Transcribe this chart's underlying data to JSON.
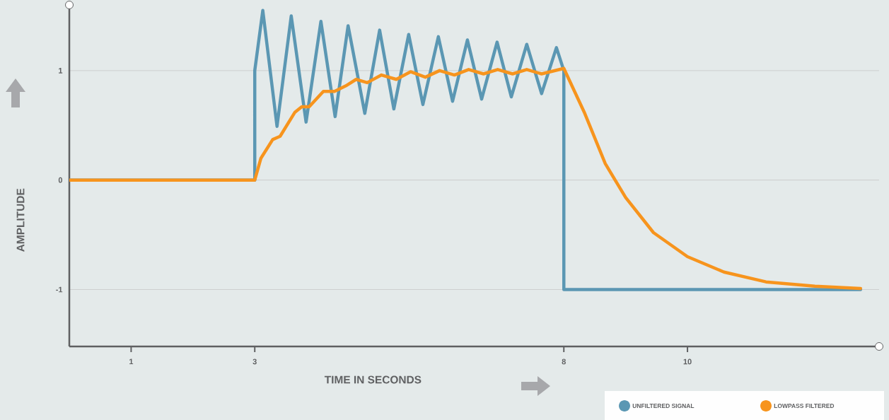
{
  "chart_data": {
    "type": "line",
    "xlabel": "TIME IN SECONDS",
    "ylabel": "AMPLITUDE",
    "xlim": [
      0,
      13.1
    ],
    "ylim": [
      -1.52,
      1.6
    ],
    "xticks": [
      1,
      3,
      8,
      10
    ],
    "yticks": [
      -1,
      0,
      1
    ],
    "grid": "y",
    "legend": "bottom right",
    "marker": "none",
    "line_style": "solid",
    "series": [
      {
        "name": "UNFILTERED SIGNAL",
        "color": "#5b97b3",
        "x": [
          0,
          3,
          3,
          3.13,
          3.36,
          3.59,
          3.83,
          4.07,
          4.3,
          4.51,
          4.78,
          5.02,
          5.25,
          5.49,
          5.72,
          5.97,
          6.2,
          6.44,
          6.67,
          6.92,
          7.15,
          7.4,
          7.64,
          7.88,
          8,
          8,
          12.8
        ],
        "values": [
          0,
          0,
          1,
          1.55,
          0.49,
          1.5,
          0.53,
          1.45,
          0.58,
          1.41,
          0.61,
          1.37,
          0.65,
          1.33,
          0.69,
          1.31,
          0.72,
          1.28,
          0.74,
          1.26,
          0.76,
          1.24,
          0.79,
          1.21,
          1,
          -1,
          -1
        ]
      },
      {
        "name": "LOWPASS FILTERED",
        "color": "#f7941d",
        "x": [
          0,
          3,
          3.1,
          3.29,
          3.41,
          3.65,
          3.76,
          3.88,
          4.11,
          4.29,
          4.47,
          4.64,
          4.82,
          5.05,
          5.29,
          5.52,
          5.76,
          5.99,
          6.23,
          6.46,
          6.7,
          6.93,
          7.17,
          7.4,
          7.64,
          8,
          8.33,
          8.67,
          9,
          9.45,
          10,
          10.59,
          11.27,
          12.06,
          12.8
        ],
        "values": [
          0,
          0,
          0.2,
          0.37,
          0.4,
          0.62,
          0.67,
          0.67,
          0.81,
          0.81,
          0.86,
          0.92,
          0.89,
          0.96,
          0.92,
          0.99,
          0.94,
          1.0,
          0.96,
          1.01,
          0.97,
          1.01,
          0.97,
          1.01,
          0.97,
          1.02,
          0.62,
          0.15,
          -0.16,
          -0.48,
          -0.7,
          -0.84,
          -0.93,
          -0.97,
          -0.99
        ]
      }
    ]
  }
}
